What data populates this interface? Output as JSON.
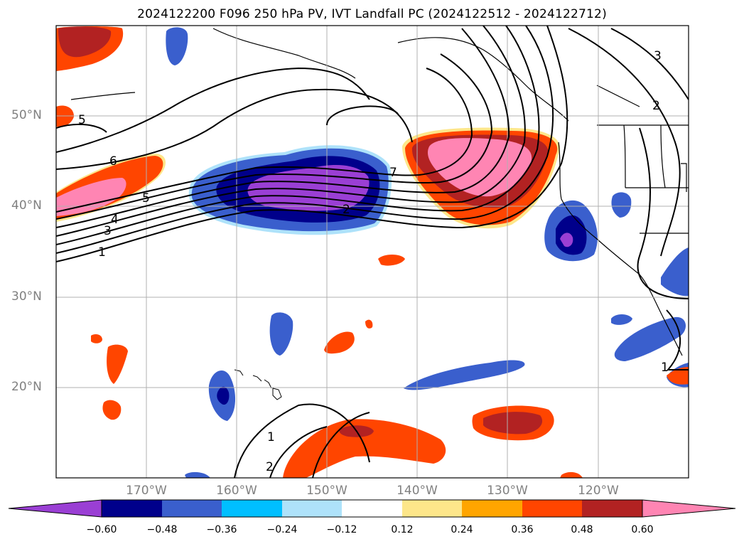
{
  "title": "2024122200 F096 250 hPa PV, IVT Landfall PC (2024122512 - 2024122712)",
  "map": {
    "lon_range": [
      -180,
      -110
    ],
    "lat_range": [
      10,
      60
    ],
    "lon_ticks": [
      -170,
      -160,
      -150,
      -140,
      -130,
      -120
    ],
    "lon_tick_labels": [
      "170°W",
      "160°W",
      "150°W",
      "140°W",
      "130°W",
      "120°W"
    ],
    "lat_ticks": [
      20,
      30,
      40,
      50
    ],
    "lat_tick_labels": [
      "20°N",
      "30°N",
      "40°N",
      "50°N"
    ],
    "grid": true
  },
  "colorbar": {
    "extend": "both",
    "levels": [
      -0.6,
      -0.48,
      -0.36,
      -0.24,
      -0.12,
      0.12,
      0.24,
      0.36,
      0.48,
      0.6
    ],
    "tick_labels": [
      "−0.60",
      "−0.48",
      "−0.36",
      "−0.24",
      "−0.12",
      "0.12",
      "0.24",
      "0.36",
      "0.48",
      "0.60"
    ],
    "colors": [
      "#9a3fd4",
      "#00008b",
      "#3a5fcd",
      "#00bfff",
      "#aee2fa",
      "#ffffff",
      "#fde68a",
      "#ffa500",
      "#ff4500",
      "#b22222",
      "#ff85b3"
    ]
  },
  "contour_labels": [
    "5",
    "6",
    "5",
    "4",
    "3",
    "1",
    "2",
    "7",
    "3",
    "2",
    "1",
    "1",
    "2"
  ]
}
